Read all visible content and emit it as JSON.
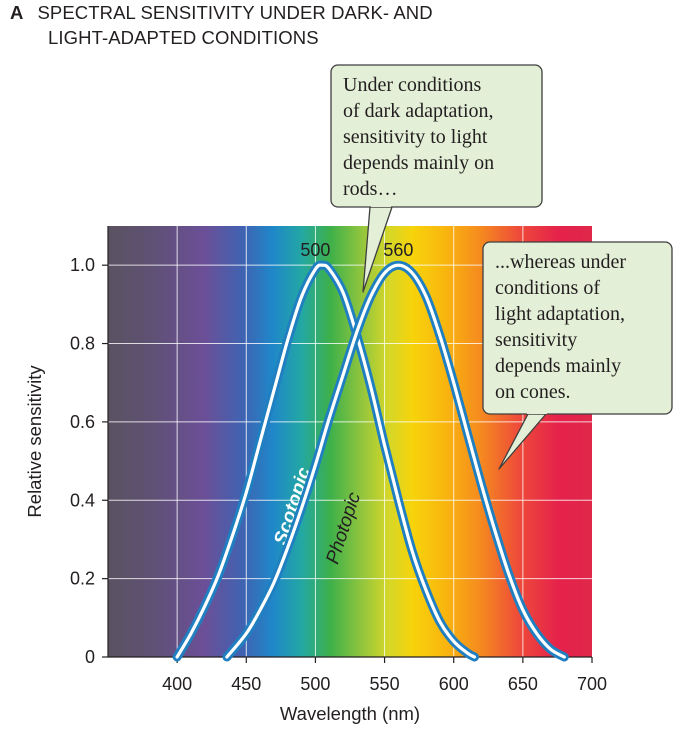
{
  "figure": {
    "panel_letter": "A",
    "title_line1": "SPECTRAL SENSITIVITY UNDER DARK- AND",
    "title_line2": "LIGHT-ADAPTED CONDITIONS"
  },
  "chart_data": {
    "type": "line",
    "title": "SPECTRAL SENSITIVITY UNDER DARK- AND LIGHT-ADAPTED CONDITIONS",
    "xlabel": "Wavelength (nm)",
    "ylabel": "Relative sensitivity",
    "xlim": [
      350,
      700
    ],
    "ylim": [
      0,
      1.1
    ],
    "xticks": [
      400,
      450,
      500,
      550,
      600,
      650,
      700
    ],
    "yticks": [
      0,
      0.2,
      0.4,
      0.6,
      0.8,
      1.0
    ],
    "ytick_labels": [
      "0",
      "0.2",
      "0.4",
      "0.6",
      "0.8",
      "1.0"
    ],
    "grid": true,
    "background": "visible-spectrum gradient",
    "colors": {
      "curve_outline": "#1f7fc0",
      "callout_fill": "#e3efd6",
      "callout_border": "#3f3f3f"
    },
    "series": [
      {
        "name": "Scotopic",
        "peak_label": "500",
        "x": [
          400,
          410,
          420,
          430,
          440,
          450,
          460,
          470,
          480,
          490,
          500,
          505,
          510,
          520,
          530,
          540,
          550,
          560,
          570,
          580,
          590,
          600,
          610,
          615
        ],
        "values": [
          0,
          0.06,
          0.13,
          0.21,
          0.31,
          0.42,
          0.55,
          0.68,
          0.81,
          0.92,
          0.99,
          1.0,
          0.99,
          0.93,
          0.82,
          0.69,
          0.54,
          0.4,
          0.27,
          0.17,
          0.09,
          0.04,
          0.01,
          0
        ]
      },
      {
        "name": "Photopic",
        "peak_label": "560",
        "x": [
          436,
          450,
          460,
          470,
          480,
          490,
          500,
          510,
          520,
          530,
          540,
          550,
          560,
          570,
          580,
          590,
          600,
          610,
          620,
          630,
          640,
          650,
          660,
          670,
          680
        ],
        "values": [
          0,
          0.06,
          0.12,
          0.19,
          0.28,
          0.38,
          0.49,
          0.61,
          0.72,
          0.83,
          0.92,
          0.98,
          1.0,
          0.98,
          0.92,
          0.82,
          0.7,
          0.57,
          0.44,
          0.32,
          0.21,
          0.12,
          0.06,
          0.02,
          0
        ]
      }
    ],
    "annotations": [
      "Under conditions of dark adaptation, sensitivity to light depends mainly on rods…",
      "...whereas under conditions of light adaptation, sensitivity depends mainly on cones."
    ]
  },
  "callouts": {
    "dark_lines": [
      "Under conditions",
      "of dark adaptation,",
      "sensitivity to light",
      "depends mainly on",
      "rods…"
    ],
    "light_lines": [
      "...whereas under",
      "conditions of",
      "light adaptation,",
      "sensitivity",
      "depends mainly",
      "on cones."
    ]
  }
}
